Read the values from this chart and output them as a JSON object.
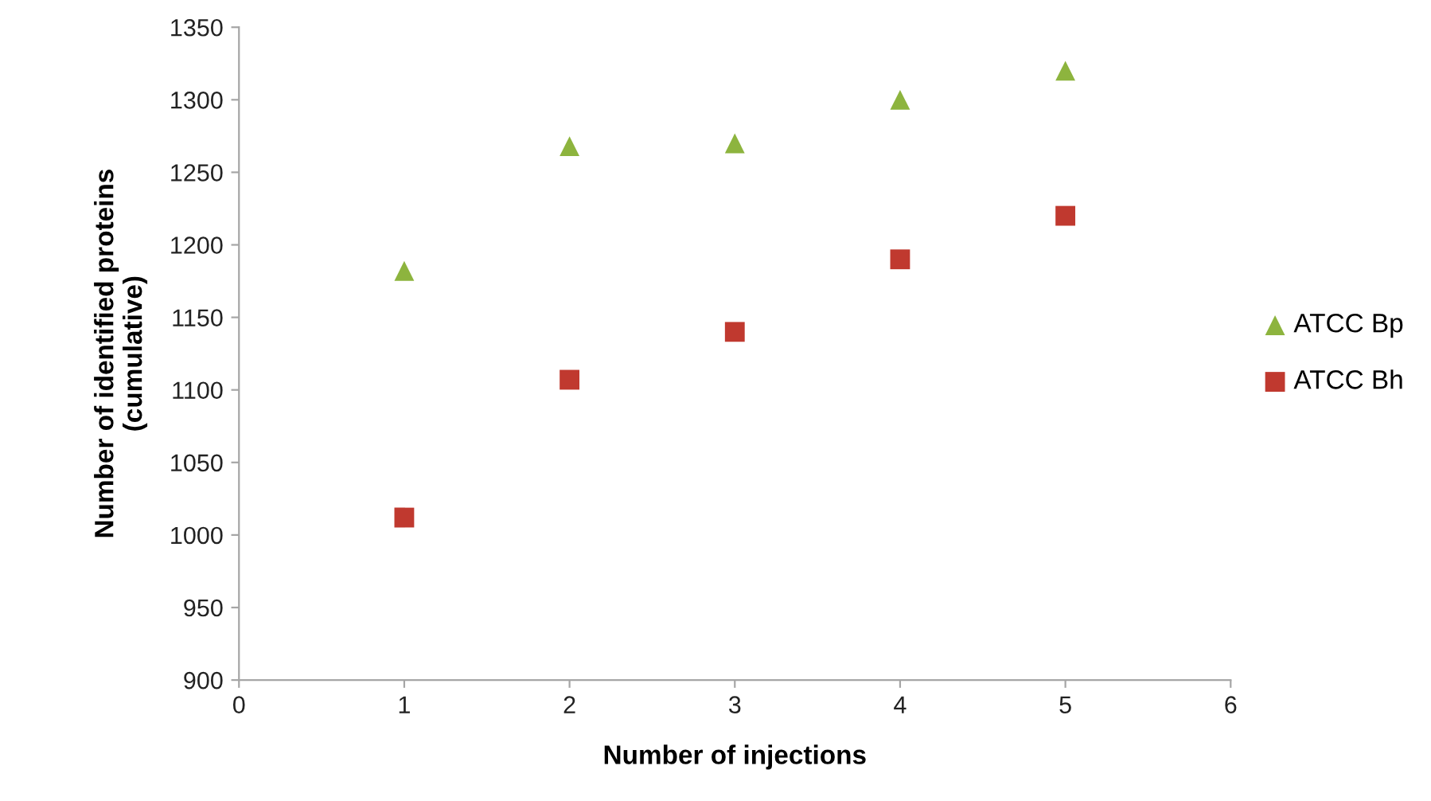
{
  "chart_data": {
    "type": "scatter",
    "xlabel": "Number of injections",
    "ylabel": "Number of identified proteins\n(cumulative)",
    "x": [
      1,
      2,
      3,
      4,
      5
    ],
    "series": [
      {
        "name": "ATCC Bp",
        "color": "#8db43e",
        "marker": "triangle",
        "values": [
          1182,
          1268,
          1270,
          1300,
          1320
        ]
      },
      {
        "name": "ATCC Bh",
        "color": "#c0392f",
        "marker": "square",
        "values": [
          1012,
          1107,
          1140,
          1190,
          1220
        ]
      }
    ],
    "xlim": [
      0,
      6
    ],
    "xticks": [
      0,
      1,
      2,
      3,
      4,
      5,
      6
    ],
    "ylim": [
      900,
      1350
    ],
    "yticks": [
      900,
      950,
      1000,
      1050,
      1100,
      1150,
      1200,
      1250,
      1300,
      1350
    ],
    "grid": false,
    "legend": "right"
  }
}
